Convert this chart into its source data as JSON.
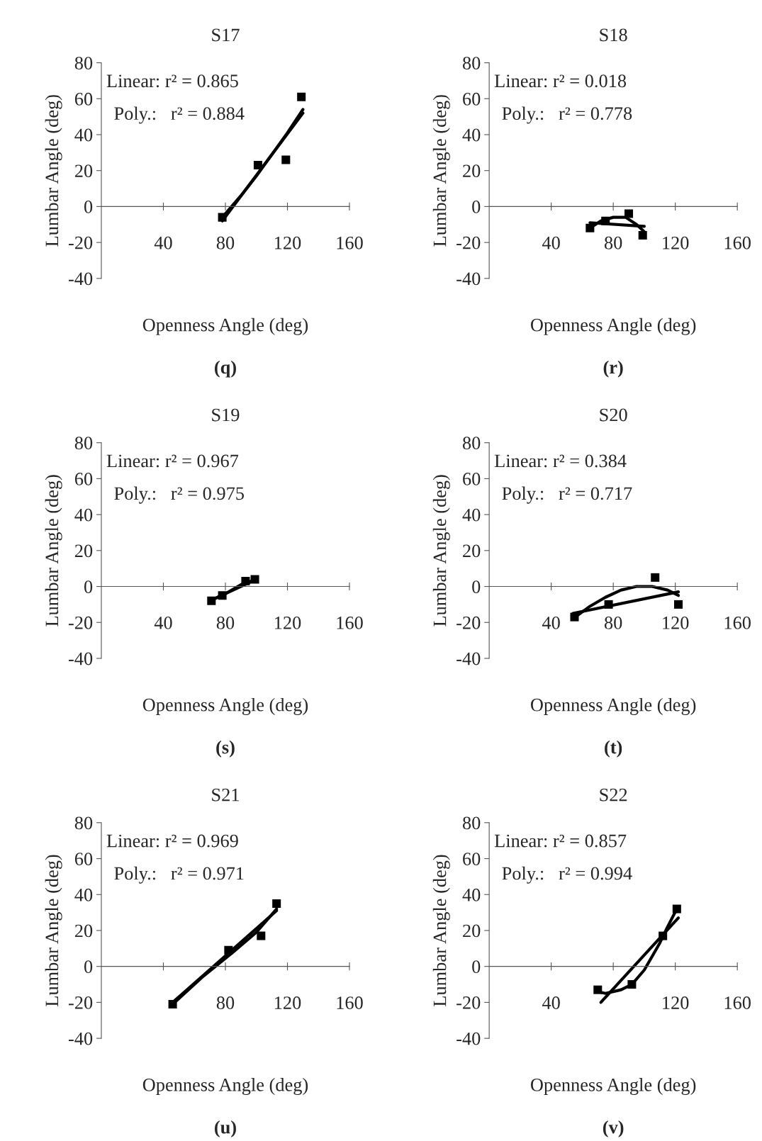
{
  "chart_data": [
    {
      "type": "scatter",
      "title": "S17",
      "xlabel": "Openness Angle (deg)",
      "ylabel": "Lumbar Angle (deg)",
      "xlim": [
        0,
        160
      ],
      "xticks": [
        40,
        80,
        120,
        160
      ],
      "ylim": [
        -40,
        80
      ],
      "yticks": [
        -40,
        -20,
        0,
        20,
        40,
        60,
        80
      ],
      "annotations": [
        "Linear: r² = 0.865",
        "Poly.:   r² = 0.884",
        "(q)"
      ],
      "series": [
        {
          "marker": "square",
          "color": "#000000",
          "x": [
            78,
            101,
            119,
            129
          ],
          "values": [
            -6,
            23,
            26,
            61
          ]
        },
        {
          "type": "line",
          "color": "#000000",
          "x": [
            78,
            130
          ],
          "values": [
            -8,
            52
          ]
        },
        {
          "type": "line",
          "color": "#000000",
          "x": [
            78,
            90,
            100,
            110,
            120,
            130
          ],
          "values": [
            -6,
            6,
            17,
            29,
            41,
            54
          ]
        }
      ]
    },
    {
      "type": "scatter",
      "title": "S18",
      "xlabel": "Openness Angle (deg)",
      "ylabel": "Lumbar Angle (deg)",
      "xlim": [
        0,
        160
      ],
      "xticks": [
        40,
        80,
        120,
        160
      ],
      "ylim": [
        -40,
        80
      ],
      "yticks": [
        -40,
        -20,
        0,
        20,
        40,
        60,
        80
      ],
      "annotations": [
        "Linear: r² = 0.018",
        "Poly.:   r² = 0.778",
        "(r)"
      ],
      "series": [
        {
          "marker": "square",
          "color": "#000000",
          "x": [
            65,
            75,
            90,
            99
          ],
          "values": [
            -12,
            -8,
            -4,
            -16
          ]
        },
        {
          "type": "line",
          "color": "#000000",
          "x": [
            65,
            100
          ],
          "values": [
            -9,
            -11
          ]
        },
        {
          "type": "line",
          "color": "#000000",
          "x": [
            65,
            72,
            80,
            88,
            95,
            100
          ],
          "values": [
            -12,
            -8,
            -6,
            -6,
            -10,
            -14
          ]
        }
      ]
    },
    {
      "type": "scatter",
      "title": "S19",
      "xlabel": "Openness Angle (deg)",
      "ylabel": "Lumbar Angle (deg)",
      "xlim": [
        0,
        160
      ],
      "xticks": [
        40,
        80,
        120,
        160
      ],
      "ylim": [
        -40,
        80
      ],
      "yticks": [
        -40,
        -20,
        0,
        20,
        40,
        60,
        80
      ],
      "annotations": [
        "Linear: r² = 0.967",
        "Poly.:   r² = 0.975",
        "(s)"
      ],
      "series": [
        {
          "marker": "square",
          "color": "#000000",
          "x": [
            71,
            78,
            93,
            99
          ],
          "values": [
            -8,
            -5,
            3,
            4
          ]
        },
        {
          "type": "line",
          "color": "#000000",
          "x": [
            70,
            100
          ],
          "values": [
            -8,
            4
          ]
        },
        {
          "type": "line",
          "color": "#000000",
          "x": [
            70,
            80,
            90,
            100
          ],
          "values": [
            -8,
            -4,
            1,
            4
          ]
        }
      ]
    },
    {
      "type": "scatter",
      "title": "S20",
      "xlabel": "Openness Angle (deg)",
      "ylabel": "Lumbar Angle (deg)",
      "xlim": [
        0,
        160
      ],
      "xticks": [
        40,
        80,
        120,
        160
      ],
      "ylim": [
        -40,
        80
      ],
      "yticks": [
        -40,
        -20,
        0,
        20,
        40,
        60,
        80
      ],
      "annotations": [
        "Linear: r² = 0.384",
        "Poly.:   r² = 0.717",
        "(t)"
      ],
      "series": [
        {
          "marker": "square",
          "color": "#000000",
          "x": [
            55,
            77,
            107,
            122
          ],
          "values": [
            -17,
            -10,
            5,
            -10
          ]
        },
        {
          "type": "line",
          "color": "#000000",
          "x": [
            54,
            122
          ],
          "values": [
            -15,
            -3
          ]
        },
        {
          "type": "line",
          "color": "#000000",
          "x": [
            54,
            65,
            75,
            85,
            95,
            105,
            115,
            122
          ],
          "values": [
            -18,
            -11,
            -6,
            -2,
            0,
            0,
            -2,
            -5
          ]
        }
      ]
    },
    {
      "type": "scatter",
      "title": "S21",
      "xlabel": "Openness Angle (deg)",
      "ylabel": "Lumbar Angle (deg)",
      "xlim": [
        0,
        160
      ],
      "xticks": [
        {
          "value": 40,
          "label": null
        },
        80,
        120,
        160
      ],
      "ylim": [
        -40,
        80
      ],
      "yticks": [
        -40,
        -20,
        0,
        20,
        40,
        60,
        80
      ],
      "annotations": [
        "Linear: r² = 0.969",
        "Poly.:   r² = 0.971",
        "(u)"
      ],
      "series": [
        {
          "marker": "square",
          "color": "#000000",
          "x": [
            46,
            82,
            103,
            113
          ],
          "values": [
            -21,
            9,
            17,
            35
          ]
        },
        {
          "type": "line",
          "color": "#000000",
          "x": [
            46,
            113
          ],
          "values": [
            -20,
            31
          ]
        },
        {
          "type": "line",
          "color": "#000000",
          "x": [
            46,
            65,
            85,
            100,
            113
          ],
          "values": [
            -21,
            -6,
            8,
            19,
            32
          ]
        }
      ]
    },
    {
      "type": "scatter",
      "title": "S22",
      "xlabel": "Openness Angle (deg)",
      "ylabel": "Lumbar Angle (deg)",
      "xlim": [
        0,
        160
      ],
      "xticks": [
        40,
        {
          "value": 80,
          "label": null
        },
        120,
        160
      ],
      "ylim": [
        -40,
        80
      ],
      "yticks": [
        -40,
        -20,
        0,
        20,
        40,
        60,
        80
      ],
      "annotations": [
        "Linear: r² = 0.857",
        "Poly.:   r² = 0.994",
        "(v)"
      ],
      "series": [
        {
          "marker": "square",
          "color": "#000000",
          "x": [
            70,
            92,
            112,
            121
          ],
          "values": [
            -13,
            -10,
            17,
            32
          ]
        },
        {
          "type": "line",
          "color": "#000000",
          "x": [
            72,
            122
          ],
          "values": [
            -20,
            27
          ]
        },
        {
          "type": "line",
          "color": "#000000",
          "x": [
            70,
            75,
            85,
            92,
            100,
            110,
            115,
            121
          ],
          "values": [
            -14,
            -15,
            -13,
            -10,
            -2,
            13,
            22,
            32
          ]
        }
      ]
    }
  ]
}
